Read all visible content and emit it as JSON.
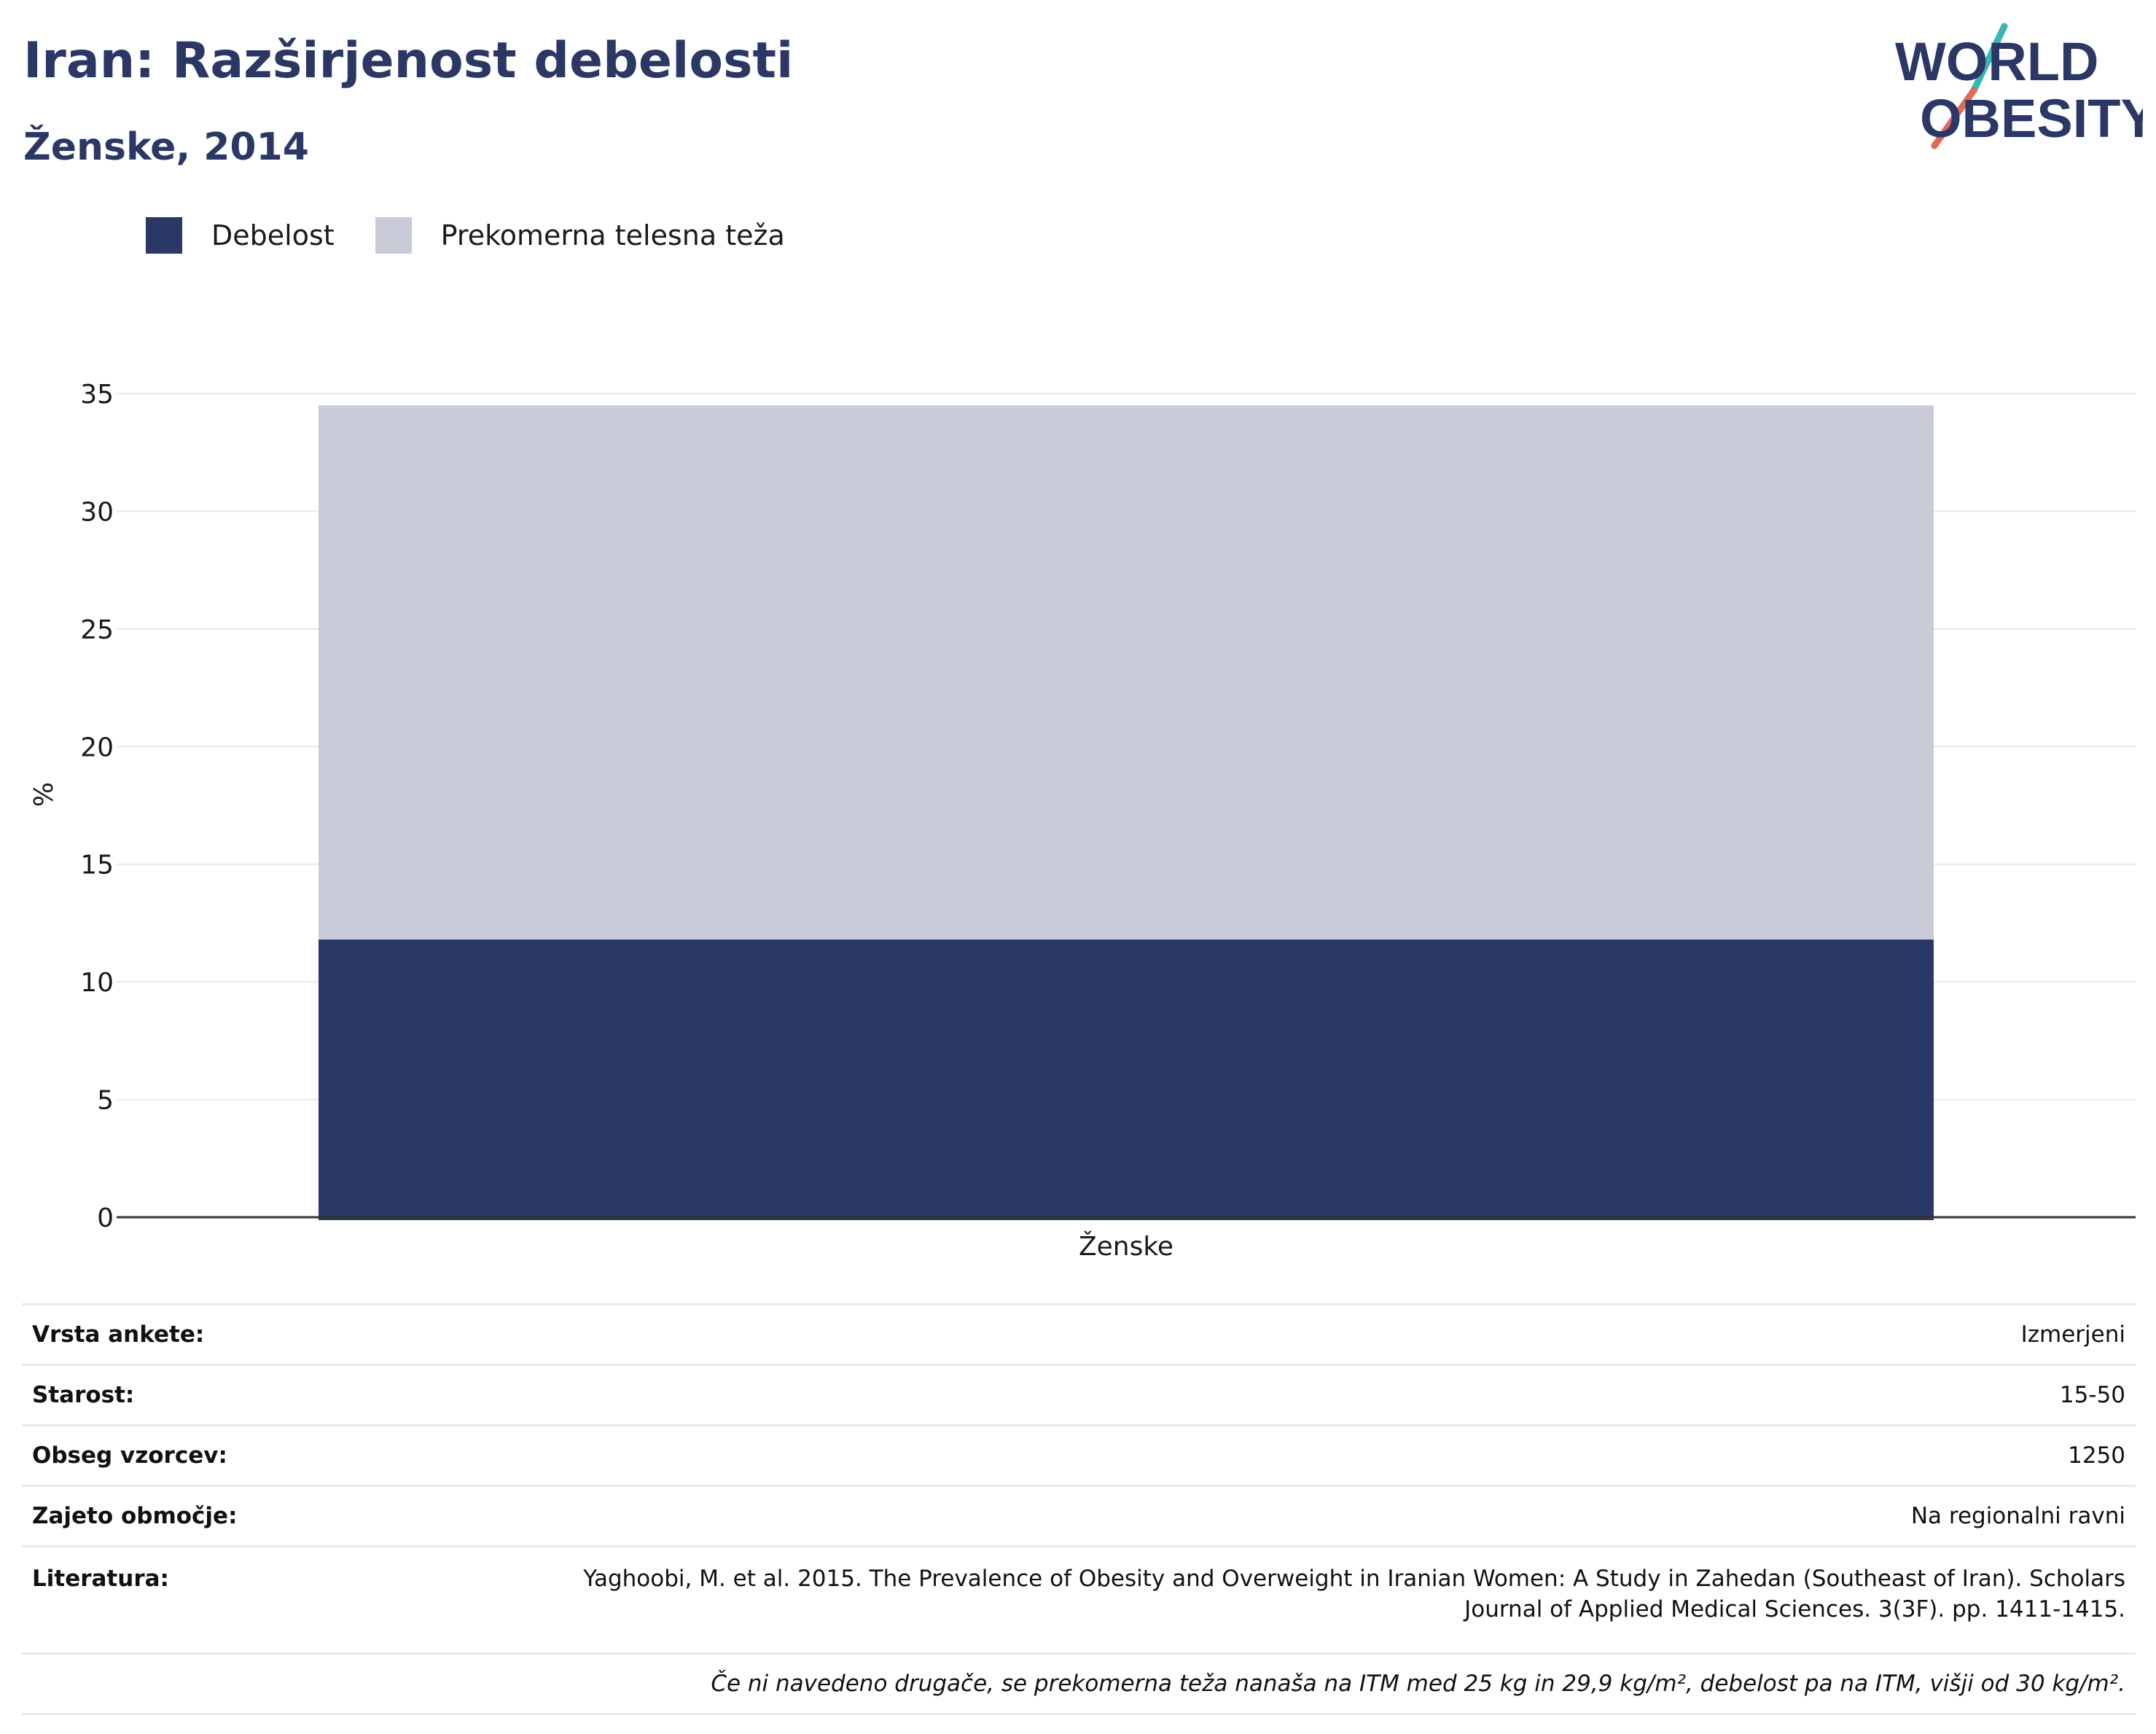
{
  "header": {
    "title": "Iran: Razširjenost debelosti",
    "subtitle": "Ženske, 2014"
  },
  "logo": {
    "line1": "WORLD",
    "line2": "OBESITY",
    "colors": {
      "text": "#2b3764",
      "slash_top": "#3ab5b0",
      "slash_bottom": "#e0695a"
    }
  },
  "colors": {
    "obesity": "#2b3764",
    "overweight": "#c9ccd8",
    "title": "#2b3764",
    "grid": "#e8e8e8",
    "axis": "#333333"
  },
  "chart_data": {
    "type": "bar",
    "stacked": true,
    "categories": [
      "Ženske"
    ],
    "series": [
      {
        "name": "Debelost",
        "values": [
          11.8
        ],
        "color": "#2b3764"
      },
      {
        "name": "Prekomerna telesna teža",
        "values": [
          22.7
        ],
        "color": "#c9ccd8"
      }
    ],
    "ylabel": "%",
    "xlabel": "",
    "ylim": [
      0,
      35
    ],
    "yticks": [
      0,
      5,
      10,
      15,
      20,
      25,
      30,
      35
    ],
    "grid": true,
    "legend_position": "top-left"
  },
  "info_table": {
    "rows": [
      {
        "key": "Vrsta ankete:",
        "value": "Izmerjeni"
      },
      {
        "key": "Starost:",
        "value": "15-50"
      },
      {
        "key": "Obseg vzorcev:",
        "value": "1250"
      },
      {
        "key": "Zajeto območje:",
        "value": "Na regionalni ravni"
      }
    ],
    "reference": {
      "key": "Literatura:",
      "line1": "Yaghoobi, M. et al. 2015. The Prevalence of Obesity and Overweight in Iranian Women: A Study in Zahedan (Southeast of Iran). Scholars",
      "line2": "Journal of Applied Medical Sciences. 3(3F). pp. 1411-1415."
    },
    "note": "Če ni navedeno drugače, se prekomerna teža nanaša na ITM med 25 kg in 29,9 kg/m², debelost pa na ITM, višji od 30 kg/m²."
  }
}
